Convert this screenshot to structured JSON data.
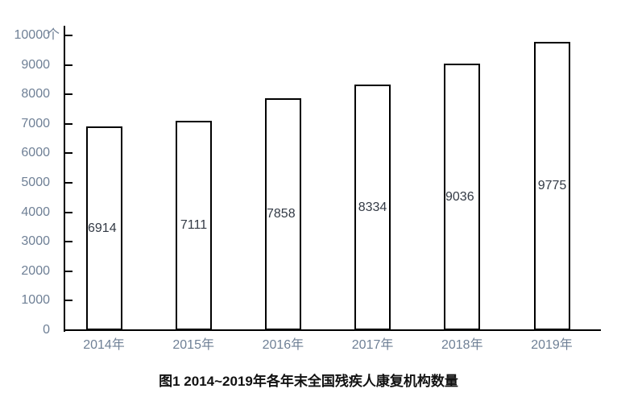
{
  "colors": {
    "background": "#ffffff",
    "axis": "#000000",
    "bar_fill": "#ffffff",
    "bar_border": "#000000",
    "tick_label": "#6f8096",
    "value_label": "#333a45",
    "caption": "#111111"
  },
  "chart_data": {
    "type": "bar",
    "title": "",
    "caption": "图1 2014~2019年各年末全国残疾人康复机构数量",
    "unit_label": "个",
    "categories": [
      "2014年",
      "2015年",
      "2016年",
      "2017年",
      "2018年",
      "2019年"
    ],
    "values": [
      6914,
      7111,
      7858,
      8334,
      9036,
      9775
    ],
    "bar_labels": [
      "6914",
      "7111",
      "7858",
      "8334",
      "9036",
      "9775"
    ],
    "y_ticks": [
      0,
      1000,
      2000,
      3000,
      4000,
      5000,
      6000,
      7000,
      8000,
      9000,
      10000
    ],
    "ylim": [
      0,
      10000
    ],
    "xlabel": "",
    "ylabel": "",
    "grid": "off",
    "legend": "none"
  }
}
